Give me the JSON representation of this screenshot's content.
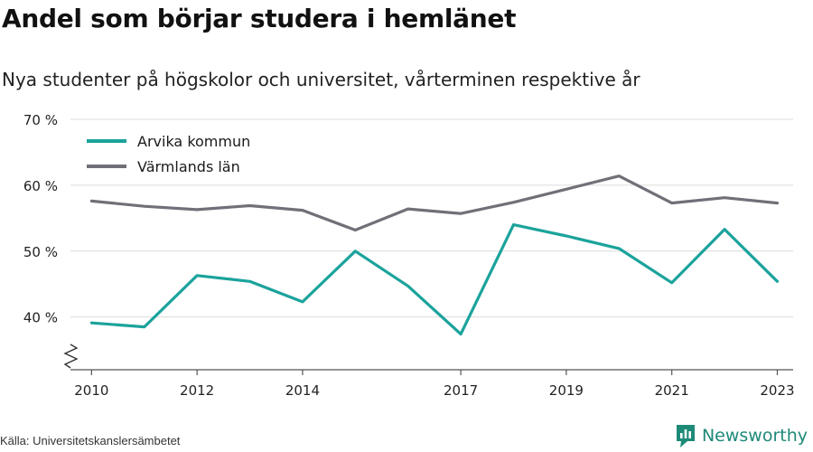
{
  "header": {
    "title": "Andel som börjar studera i hemlänet",
    "subtitle": "Nya studenter på högskolor och universitet, vårterminen respektive år"
  },
  "footer": {
    "source": "Källa: Universitetskanslersämbetet",
    "brand": "Newsworthy"
  },
  "colors": {
    "arvika": "#1ba39c",
    "varmland": "#717079",
    "grid": "#dcdcdc",
    "axis": "#555555",
    "brand": "#1e8a78"
  },
  "chart_data": {
    "type": "line",
    "title": "Andel som börjar studera i hemlänet",
    "subtitle": "Nya studenter på högskolor och universitet, vårterminen respektive år",
    "x": [
      2010,
      2011,
      2012,
      2013,
      2014,
      2015,
      2016,
      2017,
      2018,
      2019,
      2020,
      2021,
      2022,
      2023
    ],
    "x_ticks": [
      2010,
      2012,
      2014,
      2017,
      2019,
      2021,
      2023
    ],
    "y_ticks": [
      40,
      50,
      60,
      70
    ],
    "y_tick_labels": [
      "40 %",
      "50 %",
      "60 %",
      "70 %"
    ],
    "ylim": [
      32,
      70
    ],
    "xlim": [
      2009.6,
      2023.3
    ],
    "grid": true,
    "axis_break": true,
    "legend_position": "top-left",
    "series": [
      {
        "name": "Arvika kommun",
        "color": "#1ba39c",
        "values": [
          39.1,
          38.5,
          46.3,
          45.4,
          42.3,
          50.0,
          44.7,
          37.4,
          54.0,
          52.3,
          50.4,
          45.2,
          53.3,
          45.4
        ]
      },
      {
        "name": "Värmlands län",
        "color": "#717079",
        "values": [
          57.6,
          56.8,
          56.3,
          56.9,
          56.2,
          53.2,
          56.4,
          55.7,
          57.4,
          59.4,
          61.4,
          57.3,
          58.1,
          57.3
        ]
      }
    ]
  }
}
